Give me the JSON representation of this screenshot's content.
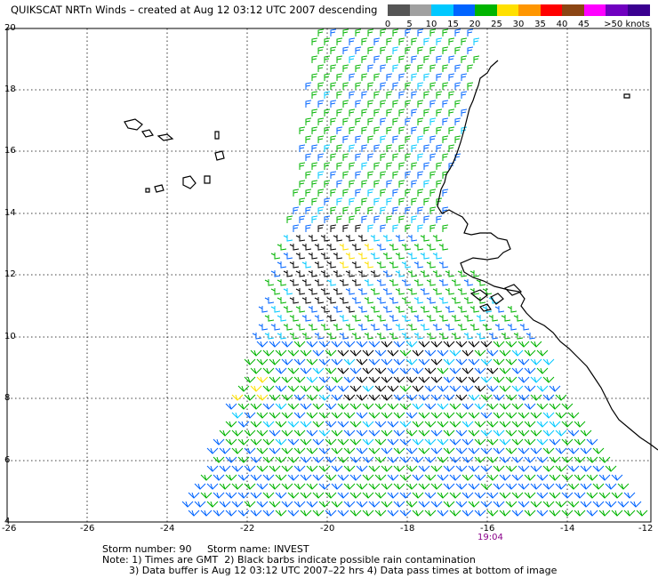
{
  "title": "QUIKSCAT NRTn Winds – created at Aug 12 03:12 UTC 2007 descending",
  "legend": {
    "labels": [
      "0",
      "5",
      "10",
      "15",
      "20",
      "25",
      "30",
      "35",
      "40",
      "45",
      ">50 knots"
    ],
    "colors": [
      "#555555",
      "#a0a0a0",
      "#00c8ff",
      "#0064ff",
      "#00b400",
      "#ffe000",
      "#ff9600",
      "#ff0000",
      "#8b4513",
      "#ff00ff",
      "#7000c0",
      "#3a0090"
    ]
  },
  "axes": {
    "x_ticks": [
      "-26",
      "-26",
      "-24",
      "-22",
      "-20",
      "-18",
      "-16",
      "-14",
      "-12"
    ],
    "y_ticks": [
      "20",
      "18",
      "16",
      "14",
      "12",
      "10",
      "8",
      "6",
      "4"
    ]
  },
  "pass_time": "19:04",
  "notes": {
    "line1": "Storm number: 90     Storm name: INVEST",
    "line2": "Note: 1) Times are GMT  2) Black barbs indicate possible rain contamination",
    "line3": "3) Data buffer is Aug 12 03:12 UTC 2007–22 hrs 4) Data pass times at bottom of image"
  },
  "colors": {
    "coast": "#000000",
    "grid": "#000000",
    "pass_time": "#8b008b"
  }
}
